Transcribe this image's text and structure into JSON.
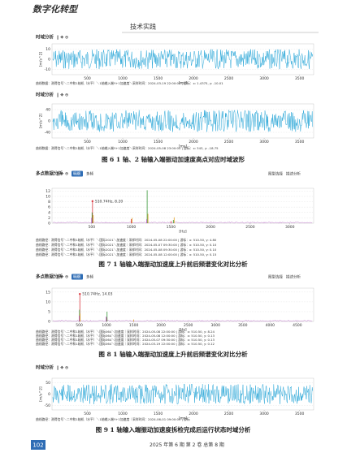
{
  "header": {
    "logo": "数字化转型",
    "section": "技术实践"
  },
  "panels": [
    {
      "title": "时域分析",
      "chart": {
        "type": "wave",
        "color": "#2aa7d8",
        "xlim": [
          0,
          3700
        ],
        "xticks": [
          500,
          1000,
          1500,
          2000,
          2500,
          3000,
          3500
        ],
        "ylim": [
          -15,
          15
        ],
        "yticks": [
          -10,
          0,
          10
        ],
        "xlabel": "[ms]",
        "ylabel": "[m/s^2]"
      },
      "info": [
        "曲线数据：测得信号＼二中和1轴机（水平）＼1轴输入端Y+1加速度＼采样时间：2024-03-19 22:00:00 | 游标：x: 1.4375, y: -10.01"
      ]
    },
    {
      "title": "时域分析",
      "chart": {
        "type": "wave",
        "color": "#2aa7d8",
        "xlim": [
          0,
          3700
        ],
        "xticks": [
          500,
          1000,
          1500,
          2000,
          2500,
          3000,
          3500
        ],
        "ylim": [
          -60,
          60
        ],
        "yticks": [
          -40,
          0,
          40
        ],
        "xlabel": "[ms]",
        "ylabel": "[m/s^2]"
      },
      "info": [
        "曲线数据：测得信号＼二中和1轴机（水平）＼1轴输入端Y+1加速度＼采样时间：2024-05-08 23:00:00 | 游标：x: 343, y: -18.75"
      ]
    },
    {
      "title": "多点数据分析",
      "tabs": [
        "明细",
        "多频"
      ],
      "controls": [
        "图型选择",
        "描述分析"
      ],
      "chart": {
        "type": "spectrum",
        "xlim": [
          0,
          3300
        ],
        "xticks": [
          500,
          1000,
          1500,
          2000,
          2500,
          3000
        ],
        "ylim": [
          0,
          13
        ],
        "yticks": [
          0,
          2,
          4,
          6,
          8,
          10,
          12
        ],
        "xlabel": "[Hz]",
        "annotation": "510.74Hz, 8.20",
        "series": [
          {
            "color": "#d9363e",
            "x": [
              510.74,
              1000,
              1500
            ],
            "values": [
              8.2,
              1.5,
              0.8
            ]
          },
          {
            "color": "#3a9a3a",
            "x": [
              505,
              1200,
              1530
            ],
            "values": [
              4,
              12.3,
              1.2
            ]
          },
          {
            "color": "#e0a020",
            "x": [
              520,
              1010,
              1210,
              1540
            ],
            "values": [
              3,
              2,
              3.5,
              2.2
            ]
          },
          {
            "color": "#b050c0",
            "x": [
              500,
              1195
            ],
            "values": [
              2,
              1.5
            ]
          }
        ]
      },
      "info": [
        "曲线路径：测得信号＼二中和1轴机（水平）＼国际2021＼加速度｜采样时间：2024-05-08 22:00:00 | 游标：x: 510.50, y: 4.80",
        "曲线路径：测得信号＼二中和1轴机（水平）＼国际2021＼加速度｜采样时间：2024-05-07 09:30:00 | 游标：x: 510.50, y: 0.10",
        "曲线路径：测得信号＼二中和1轴机（水平）＼国际2021＼加速度｜采样时间：2024-05-08 09:30:00 | 游标：x: 510.50, y: 0.10",
        "曲线路径：测得信号＼二中和1轴机（水平）＼国际2021＼加速度｜采样时间：2024-05-08 12:00:00 | 游标：x: 510.50, y: 0.15"
      ]
    },
    {
      "title": "多点数据分析",
      "tabs": [
        "明细",
        "多频"
      ],
      "controls": [
        "图型选择",
        "描述分析"
      ],
      "chart": {
        "type": "spectrum",
        "xlim": [
          0,
          4800
        ],
        "xticks": [
          500,
          1000,
          1500,
          2000,
          2500,
          3000,
          3500,
          4000,
          4500
        ],
        "ylim": [
          0,
          17
        ],
        "yticks": [
          0,
          5,
          10,
          15
        ],
        "xlabel": "[Hz]",
        "annotation": "510.74Hz, 14.03",
        "series": [
          {
            "color": "#d9363e",
            "x": [
              510.74,
              1000
            ],
            "values": [
              14.03,
              2
            ]
          },
          {
            "color": "#3a9a3a",
            "x": [
              505,
              1010
            ],
            "values": [
              6,
              5
            ]
          },
          {
            "color": "#e0a020",
            "x": [
              515,
              1500
            ],
            "values": [
              4,
              1
            ]
          },
          {
            "color": "#b050c0",
            "x": [
              500,
              995
            ],
            "values": [
              3,
              2.5
            ]
          }
        ]
      },
      "info": [
        "曲线路径：测得信号＼二中和1轴机（水平）＼国际064＼加速度｜采样时间：2024-05-08 22:00:00 | 游标：x: 510.50, y: 8.24",
        "曲线路径：测得信号＼二中和1轴机（水平）＼国际064＼加速度｜采样时间：2024-05-08 12:00:00 | 游标：x: 510.50, y: 0.13",
        "曲线路径：测得信号＼二中和1轴机（水平）＼国际064＼加速度｜采样时间：2024-05-07 09:30:00 | 游标：x: 510.50, y: 0.13",
        "曲线路径：测得信号＼二中和1轴机（水平）＼国际064＼加速度｜采样时间：2024-03-19 22:00:00 | 游标：x: 510.50, y: 0.12"
      ]
    },
    {
      "title": "时域分析",
      "chart": {
        "type": "wave",
        "color": "#2aa7d8",
        "xlim": [
          0,
          3700
        ],
        "xticks": [
          500,
          1000,
          1500,
          2000,
          2500,
          3000,
          3500
        ],
        "ylim": [
          -70,
          70
        ],
        "yticks": [
          -50,
          0,
          50
        ],
        "xlabel": "[ms]",
        "ylabel": "[m/s^2]"
      },
      "info": [
        "曲线路径：测得信号＼二中和1轴机（水平）＼1轴输入端Y+1加速度｜采样时间：2024-06-01 09:00:00 | 游标"
      ]
    }
  ],
  "captions": [
    "图 6 1 轴、2 轴输入端振动加速度高点对应时域波形",
    "图 7 1 轴输入端振动加速度上升前后频谱变化对比分析",
    "图 8 1 轴输入端振动加速度上升前后频谱变化对比分析",
    "图 9 1 轴输入端振动加速度拆检完成后运行状态时域分析"
  ],
  "footer": {
    "page": "102",
    "issue": "2025 年第 6 期 第 2 卷 总第 8 期"
  }
}
